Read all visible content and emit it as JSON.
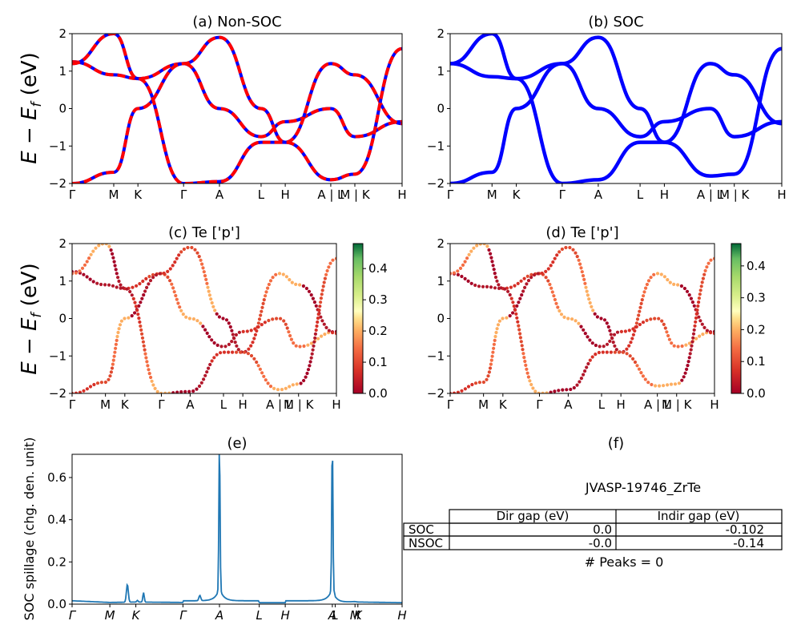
{
  "figure_id": "JVASP-19746_ZrTe",
  "kpath_labels": [
    "Γ",
    "M",
    "K",
    "Γ",
    "A",
    "L",
    "H",
    "A | L",
    "M | K",
    "H"
  ],
  "kpath_labels_italic": [
    "Γ",
    "M",
    "K",
    "Γ",
    "A",
    "L",
    "H",
    "A",
    "L",
    "M",
    "K",
    "H"
  ],
  "yticks_band": [
    "2",
    "1",
    "0",
    "−1",
    "−2"
  ],
  "ylabel_band": "E − E",
  "ylabel_band_sub": "f",
  "ylabel_band_unit": " (eV)",
  "colors": {
    "red": "#ff0000",
    "blue": "#0000ff",
    "line": "#1f77b4"
  },
  "chart_data": [
    {
      "type": "line",
      "panel": "a",
      "title": "(a) Non-SOC",
      "ylim": [
        -2,
        2
      ],
      "x": [
        "Γ",
        "M",
        "K",
        "Γ",
        "A",
        "L",
        "H",
        "A | L",
        "M | K",
        "H"
      ],
      "series": [
        {
          "values": [
            1.25,
            0.9,
            0.8,
            1.2,
            0.0,
            -0.75,
            -0.35,
            0.0,
            -0.75,
            -0.35
          ]
        },
        {
          "values": [
            -2.0,
            -1.7,
            0.0,
            1.2,
            1.9,
            0.0,
            -0.9,
            1.2,
            0.9,
            -0.4
          ]
        },
        {
          "values": [
            1.2,
            2.0,
            0.8,
            -2.0,
            -1.95,
            -0.9,
            -0.9,
            -1.9,
            -1.75,
            1.6
          ]
        }
      ]
    },
    {
      "type": "line",
      "panel": "b",
      "title": "(b) SOC",
      "ylim": [
        -2,
        2
      ],
      "x": [
        "Γ",
        "M",
        "K",
        "Γ",
        "A",
        "L",
        "H",
        "A | L",
        "M | K",
        "H"
      ],
      "series": [
        {
          "values": [
            1.2,
            0.85,
            0.8,
            1.2,
            0.0,
            -0.75,
            -0.35,
            0.0,
            -0.75,
            -0.35
          ]
        },
        {
          "values": [
            -2.0,
            -1.7,
            0.0,
            1.2,
            1.9,
            0.0,
            -0.9,
            1.2,
            0.9,
            -0.4
          ]
        },
        {
          "values": [
            1.2,
            2.0,
            0.8,
            -2.0,
            -1.9,
            -0.9,
            -0.9,
            -1.8,
            -1.75,
            1.6
          ]
        }
      ]
    },
    {
      "type": "scatter",
      "panel": "c",
      "title": "(c)  Te ['p']",
      "ylim": [
        -2,
        2
      ],
      "colorbar": {
        "min": 0.0,
        "max": 0.48,
        "ticks": [
          "0.4",
          "0.3",
          "0.2",
          "0.1",
          "0.0"
        ]
      },
      "x": [
        "Γ",
        "M",
        "K",
        "Γ",
        "A",
        "L",
        "H",
        "A | L",
        "M | K",
        "H"
      ],
      "series": [
        {
          "values": [
            1.25,
            0.9,
            0.8,
            1.2,
            0.0,
            -0.75,
            -0.35,
            0.0,
            -0.75,
            -0.35
          ]
        },
        {
          "values": [
            -2.0,
            -1.7,
            0.0,
            1.2,
            1.9,
            0.0,
            -0.9,
            1.2,
            0.9,
            -0.4
          ]
        },
        {
          "values": [
            1.2,
            2.0,
            0.8,
            -2.0,
            -1.95,
            -0.9,
            -0.9,
            -1.9,
            -1.75,
            1.6
          ]
        }
      ]
    },
    {
      "type": "scatter",
      "panel": "d",
      "title": "(d) Te ['p']",
      "ylim": [
        -2,
        2
      ],
      "colorbar": {
        "min": 0.0,
        "max": 0.47,
        "ticks": [
          "0.4",
          "0.3",
          "0.2",
          "0.1",
          "0.0"
        ]
      },
      "x": [
        "Γ",
        "M",
        "K",
        "Γ",
        "A",
        "L",
        "H",
        "A | L",
        "M | K",
        "H"
      ],
      "series": [
        {
          "values": [
            1.2,
            0.85,
            0.8,
            1.2,
            0.0,
            -0.75,
            -0.35,
            0.0,
            -0.75,
            -0.35
          ]
        },
        {
          "values": [
            -2.0,
            -1.7,
            0.0,
            1.2,
            1.9,
            0.0,
            -0.9,
            1.2,
            0.9,
            -0.4
          ]
        },
        {
          "values": [
            1.2,
            2.0,
            0.8,
            -2.0,
            -1.9,
            -0.9,
            -0.9,
            -1.8,
            -1.75,
            1.6
          ]
        }
      ]
    },
    {
      "type": "line",
      "panel": "e",
      "title": "(e)",
      "ylabel": "SOC spillage (chg. den. unit)",
      "ylim": [
        0,
        0.71
      ],
      "yticks": [
        "0.6",
        "0.4",
        "0.2",
        "0.0"
      ],
      "x": [
        "Γ",
        "M",
        "K",
        "Γ",
        "A",
        "L",
        "H",
        "A",
        "L",
        "M",
        "K",
        "H"
      ],
      "series": [
        {
          "name": "",
          "values": [
            0.016,
            0.008,
            0.01,
            0.008,
            0.71,
            0.007,
            0.007,
            0.71,
            0.007,
            0.012,
            0.01,
            0.007
          ]
        }
      ]
    },
    {
      "type": "table",
      "panel": "f",
      "title": "(f)",
      "caption": "JVASP-19746_ZrTe",
      "columns": [
        "",
        "Dir gap (eV)",
        "Indir gap (eV)"
      ],
      "rows": [
        [
          "SOC",
          "0.0",
          "-0.102"
        ],
        [
          "NSOC",
          "-0.0",
          "-0.14"
        ]
      ],
      "footer": "# Peaks = 0"
    }
  ]
}
